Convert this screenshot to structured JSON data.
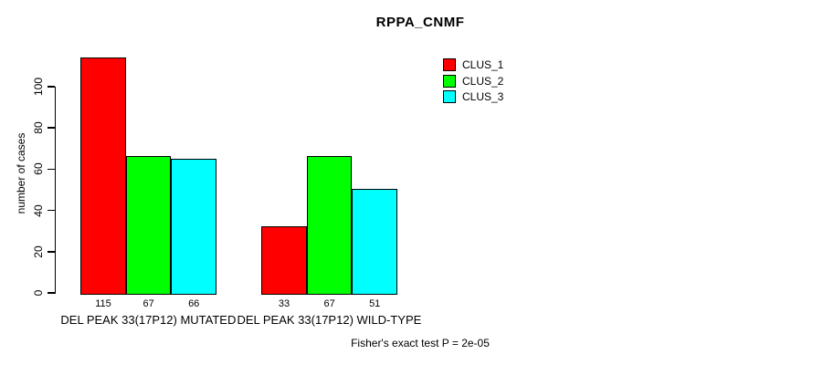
{
  "chart_data": {
    "type": "bar",
    "title": "RPPA_CNMF",
    "ylabel": "number of cases",
    "xlabel": "",
    "ylim": [
      0,
      115
    ],
    "yticks": [
      0,
      20,
      40,
      60,
      80,
      100
    ],
    "grid": false,
    "legend_position": "top-right",
    "categories": [
      "DEL PEAK 33(17P12) MUTATED",
      "DEL PEAK 33(17P12) WILD-TYPE"
    ],
    "series": [
      {
        "name": "CLUS_1",
        "color": "#ff0000",
        "values": [
          115,
          33
        ]
      },
      {
        "name": "CLUS_2",
        "color": "#00ff00",
        "values": [
          67,
          67
        ]
      },
      {
        "name": "CLUS_3",
        "color": "#00ffff",
        "values": [
          66,
          51
        ]
      }
    ],
    "bar_value_labels": [
      [
        115,
        67,
        66
      ],
      [
        33,
        67,
        51
      ]
    ],
    "annotation": "Fisher's exact test P = 2e-05"
  }
}
